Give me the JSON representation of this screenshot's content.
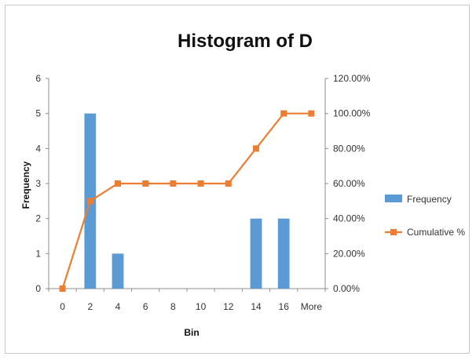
{
  "chart_data": {
    "type": "bar",
    "title": "Histogram of D",
    "xlabel": "Bin",
    "ylabel": "Frequency",
    "categories": [
      "0",
      "2",
      "4",
      "6",
      "8",
      "10",
      "12",
      "14",
      "16",
      "More"
    ],
    "series": [
      {
        "name": "Frequency",
        "type": "bar",
        "axis": "left",
        "color": "#5B9BD5",
        "values": [
          0,
          5,
          1,
          0,
          0,
          0,
          0,
          2,
          2,
          0
        ]
      },
      {
        "name": "Cumulative %",
        "type": "line",
        "axis": "right",
        "color": "#ED7D31",
        "marker": "square",
        "values": [
          0,
          50,
          60,
          60,
          60,
          60,
          60,
          80,
          100,
          100
        ]
      }
    ],
    "ylim": [
      0,
      6
    ],
    "y_ticks": [
      "0",
      "1",
      "2",
      "3",
      "4",
      "5",
      "6"
    ],
    "y2lim": [
      0,
      120
    ],
    "y2_ticks": [
      "0.00%",
      "20.00%",
      "40.00%",
      "60.00%",
      "80.00%",
      "100.00%",
      "120.00%"
    ],
    "grid": false,
    "legend_position": "right"
  }
}
